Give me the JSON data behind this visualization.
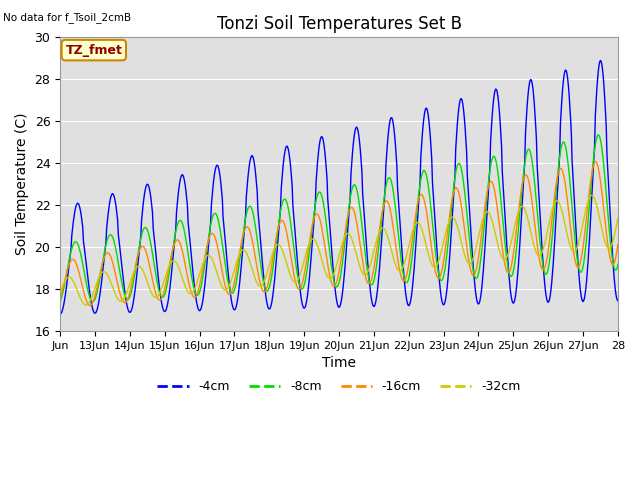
{
  "title": "Tonzi Soil Temperatures Set B",
  "xlabel": "Time",
  "ylabel": "Soil Temperature (C)",
  "no_data_text": "No data for f_Tsoil_2cmB",
  "tz_fmet_label": "TZ_fmet",
  "ylim": [
    16,
    30
  ],
  "xlim_days": [
    12.0,
    28.0
  ],
  "x_tick_positions": [
    12,
    13,
    14,
    15,
    16,
    17,
    18,
    19,
    20,
    21,
    22,
    23,
    24,
    25,
    26,
    27,
    28
  ],
  "x_tick_labels": [
    "Jun",
    "13Jun",
    "14Jun",
    "15Jun",
    "16Jun",
    "17Jun",
    "18Jun",
    "19Jun",
    "20Jun",
    "21Jun",
    "22Jun",
    "23Jun",
    "24Jun",
    "25Jun",
    "26Jun",
    "27Jun",
    "28"
  ],
  "y_tick_positions": [
    16,
    18,
    20,
    22,
    24,
    26,
    28,
    30
  ],
  "colors": {
    "4cm": "#0000ff",
    "8cm": "#00dd00",
    "16cm": "#ff8800",
    "32cm": "#cccc00"
  },
  "legend_labels": [
    "-4cm",
    "-8cm",
    "-16cm",
    "-32cm"
  ],
  "bg_color": "#e0e0e0",
  "grid_color": "#ffffff"
}
